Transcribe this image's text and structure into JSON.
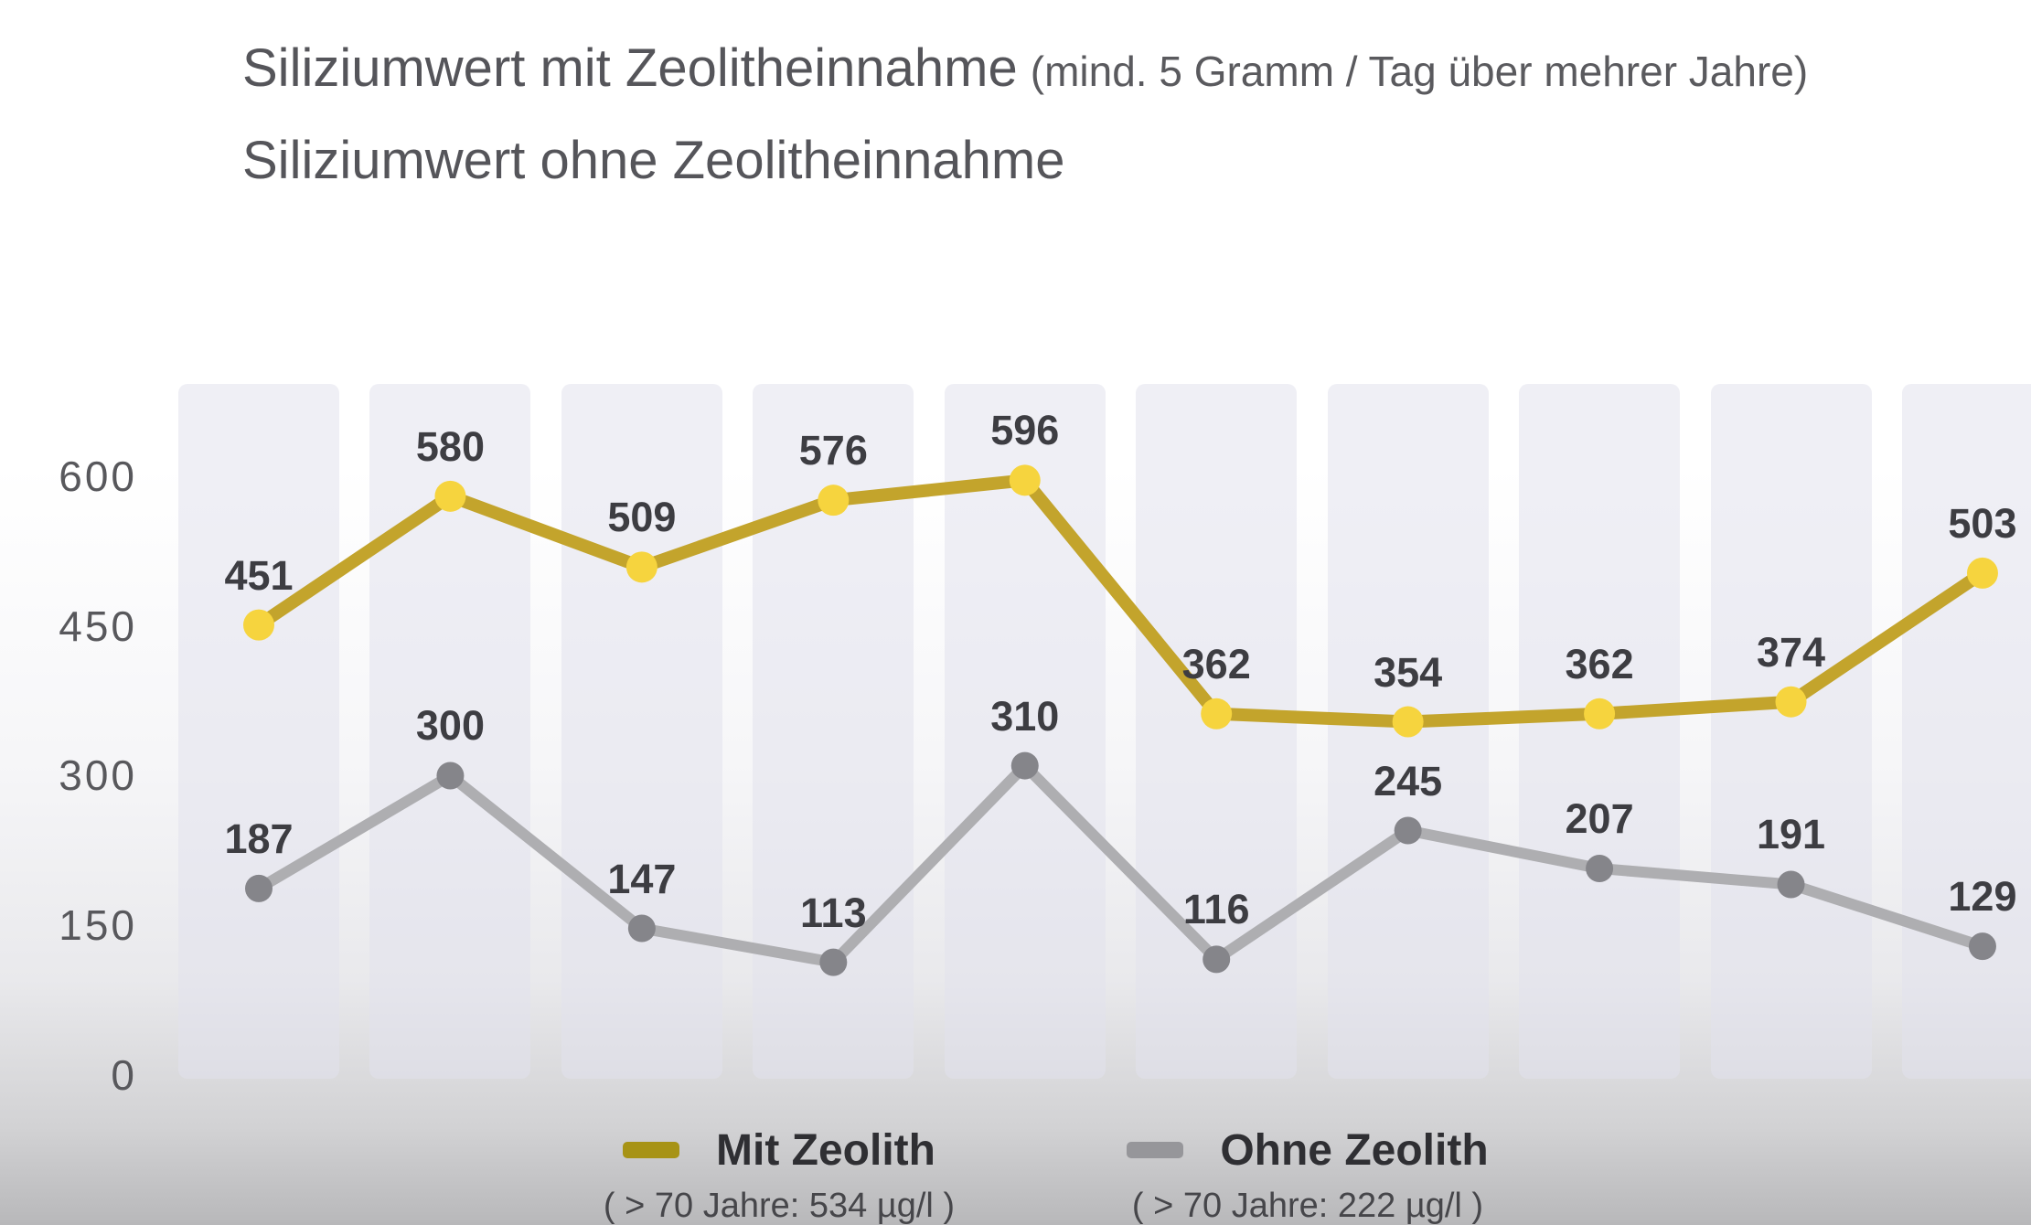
{
  "title": {
    "line1_main": "Siliziumwert mit Zeolitheinnahme",
    "line1_note": "(mind. 5 Gramm / Tag über mehrer Jahre)",
    "line2": "Siliziumwert ohne Zeolitheinnahme"
  },
  "chart_data": {
    "type": "line",
    "series": [
      {
        "name": "Mit Zeolith",
        "note": "( > 70 Jahre: 534 µg/l )",
        "values": [
          451,
          580,
          509,
          576,
          596,
          362,
          354,
          362,
          374,
          503
        ],
        "color": "#c3a42c",
        "marker_color": "#f6d43e",
        "swatch_color": "#a79315"
      },
      {
        "name": "Ohne Zeolith",
        "note": "( > 70 Jahre: 222 µg/l )",
        "values": [
          187,
          300,
          147,
          113,
          310,
          116,
          245,
          207,
          191,
          129
        ],
        "color": "#aeaeb1",
        "marker_color": "#85858a",
        "swatch_color": "#96969a"
      }
    ],
    "yticks": [
      600,
      450,
      300,
      150,
      0
    ],
    "ylim": [
      0,
      650
    ],
    "xlabel": "",
    "ylabel": "",
    "grid": "vertical-bands",
    "legend_position": "bottom",
    "value_label_color": "#3d3d42",
    "axis_label_color": "#58585c",
    "band_color": "rgba(225,225,237,0.55)"
  }
}
